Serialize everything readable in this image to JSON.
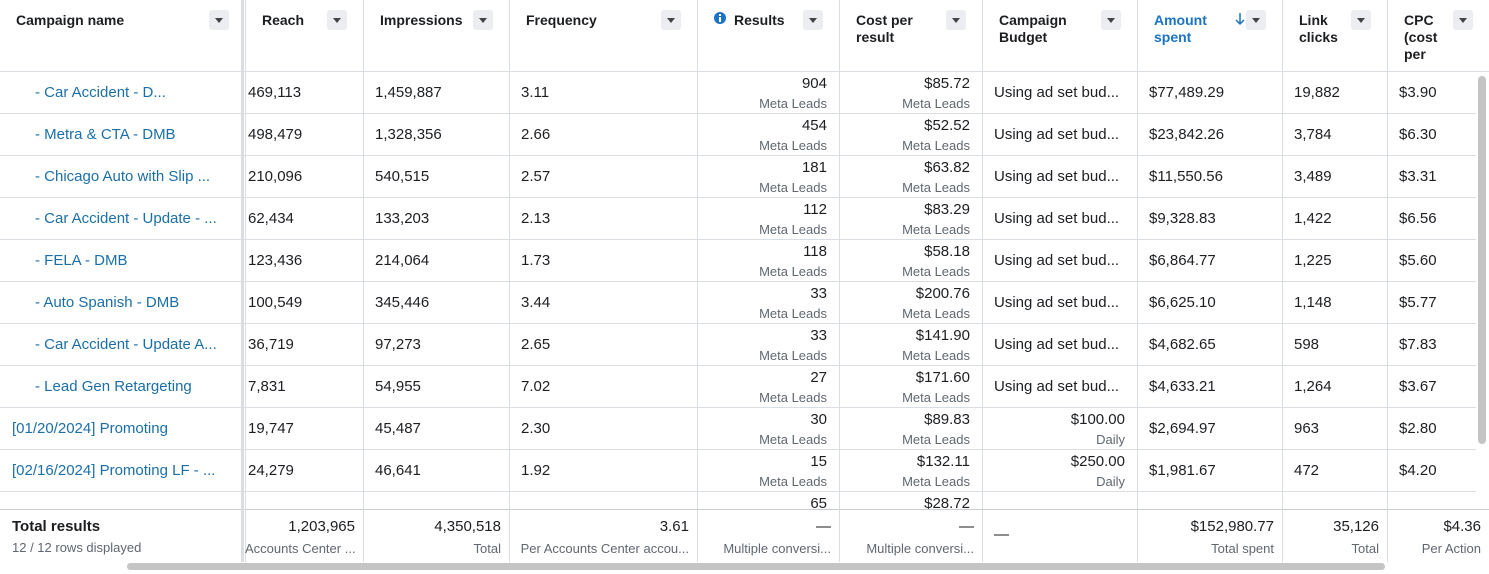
{
  "table": {
    "headers": [
      "Campaign name",
      "Reach",
      "Impressions",
      "Frequency",
      "Results",
      "Cost per result",
      "Campaign Budget",
      "Amount spent",
      "Link clicks",
      "CPC (cost per"
    ],
    "rows": [
      [
        "- Car Accident - D...",
        "469,113",
        "1,459,887",
        "3.11",
        [
          "904",
          "Meta Leads"
        ],
        [
          "$85.72",
          "Meta Leads"
        ],
        "Using ad set bud...",
        "$77,489.29",
        "19,882",
        "$3.90"
      ],
      [
        "- Metra & CTA - DMB",
        "498,479",
        "1,328,356",
        "2.66",
        [
          "454",
          "Meta Leads"
        ],
        [
          "$52.52",
          "Meta Leads"
        ],
        "Using ad set bud...",
        "$23,842.26",
        "3,784",
        "$6.30"
      ],
      [
        "- Chicago Auto with Slip ...",
        "210,096",
        "540,515",
        "2.57",
        [
          "181",
          "Meta Leads"
        ],
        [
          "$63.82",
          "Meta Leads"
        ],
        "Using ad set bud...",
        "$11,550.56",
        "3,489",
        "$3.31"
      ],
      [
        "- Car Accident - Update - ...",
        "62,434",
        "133,203",
        "2.13",
        [
          "112",
          "Meta Leads"
        ],
        [
          "$83.29",
          "Meta Leads"
        ],
        "Using ad set bud...",
        "$9,328.83",
        "1,422",
        "$6.56"
      ],
      [
        "- FELA - DMB",
        "123,436",
        "214,064",
        "1.73",
        [
          "118",
          "Meta Leads"
        ],
        [
          "$58.18",
          "Meta Leads"
        ],
        "Using ad set bud...",
        "$6,864.77",
        "1,225",
        "$5.60"
      ],
      [
        "- Auto Spanish - DMB",
        "100,549",
        "345,446",
        "3.44",
        [
          "33",
          "Meta Leads"
        ],
        [
          "$200.76",
          "Meta Leads"
        ],
        "Using ad set bud...",
        "$6,625.10",
        "1,148",
        "$5.77"
      ],
      [
        "- Car Accident - Update A...",
        "36,719",
        "97,273",
        "2.65",
        [
          "33",
          "Meta Leads"
        ],
        [
          "$141.90",
          "Meta Leads"
        ],
        "Using ad set bud...",
        "$4,682.65",
        "598",
        "$7.83"
      ],
      [
        "- Lead Gen Retargeting",
        "7,831",
        "54,955",
        "7.02",
        [
          "27",
          "Meta Leads"
        ],
        [
          "$171.60",
          "Meta Leads"
        ],
        "Using ad set bud...",
        "$4,633.21",
        "1,264",
        "$3.67"
      ],
      [
        "[01/20/2024] Promoting",
        "19,747",
        "45,487",
        "2.30",
        [
          "30",
          "Meta Leads"
        ],
        [
          "$89.83",
          "Meta Leads"
        ],
        [
          "$100.00",
          "Daily"
        ],
        "$2,694.97",
        "963",
        "$2.80"
      ],
      [
        "[02/16/2024] Promoting LF - ...",
        "24,279",
        "46,641",
        "1.92",
        [
          "15",
          "Meta Leads"
        ],
        [
          "$132.11",
          "Meta Leads"
        ],
        [
          "$250.00",
          "Daily"
        ],
        "$1,981.67",
        "472",
        "$4.20"
      ],
      [
        null,
        null,
        null,
        null,
        [
          "65",
          null
        ],
        [
          "$28.72",
          null
        ],
        null,
        null,
        null,
        null
      ]
    ],
    "footer": {
      "title": "Total results",
      "subtitle": "12 / 12 rows displayed",
      "cells": [
        [
          "1,203,965",
          "Accounts Center ..."
        ],
        [
          "4,350,518",
          "Total"
        ],
        [
          "3.61",
          "Per Accounts Center accou..."
        ],
        [
          "—",
          "Multiple conversi..."
        ],
        [
          "—",
          "Multiple conversi..."
        ],
        "—",
        [
          "$152,980.77",
          "Total spent"
        ],
        [
          "35,126",
          "Total"
        ],
        [
          "$4.36",
          "Per Action"
        ]
      ]
    }
  }
}
